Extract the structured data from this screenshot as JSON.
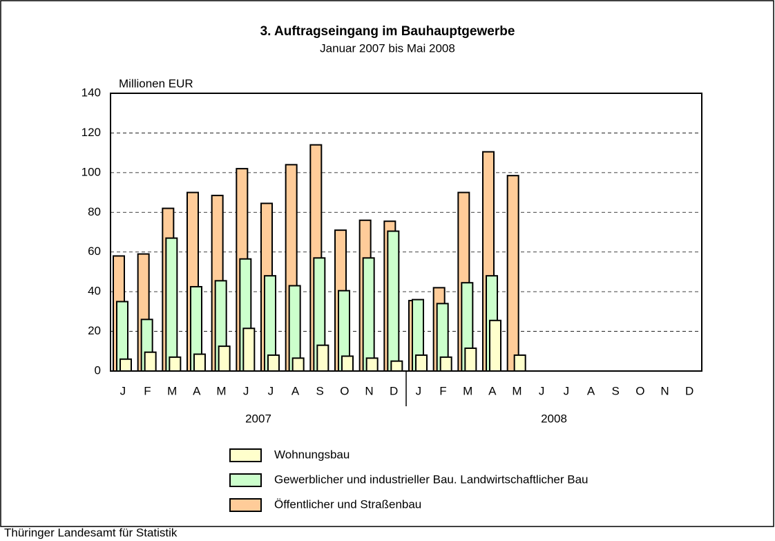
{
  "chart_data": {
    "type": "bar",
    "title": "3. Auftragseingang im Bauhauptgewerbe",
    "subtitle": "Januar 2007 bis Mai 2008",
    "y_label": "Millionen EUR",
    "source": "Thüringer Landesamt für Statistik",
    "categories": [
      "J",
      "F",
      "M",
      "A",
      "M",
      "J",
      "J",
      "A",
      "S",
      "O",
      "N",
      "D",
      "J",
      "F",
      "M",
      "A",
      "M",
      "J",
      "J",
      "A",
      "S",
      "O",
      "N",
      "D"
    ],
    "x_groups": [
      "2007",
      "2008"
    ],
    "series": [
      {
        "name": "Wohnungsbau",
        "color": "#ffffcc",
        "values": [
          6,
          9.5,
          7,
          8.5,
          12.5,
          21.5,
          8,
          6.5,
          13,
          7.5,
          6.5,
          5,
          8,
          7,
          11.5,
          25.5,
          8,
          null,
          null,
          null,
          null,
          null,
          null,
          null
        ]
      },
      {
        "name": "Gewerblicher und industrieller Bau. Landwirtschaftlicher Bau",
        "color": "#ccffcc",
        "values": [
          35,
          26,
          67,
          42.5,
          45.5,
          56.5,
          48,
          43,
          57,
          40.5,
          57,
          70.5,
          36,
          34,
          44.5,
          48,
          null,
          null,
          null,
          null,
          null,
          null,
          null,
          null
        ]
      },
      {
        "name": "Öffentlicher und Straßenbau",
        "color": "#ffcc99",
        "values": [
          58,
          59,
          82,
          90,
          88.5,
          102,
          84.5,
          104,
          114,
          71,
          76,
          75.5,
          35.5,
          42,
          90,
          110.5,
          98.5,
          null,
          null,
          null,
          null,
          null,
          null,
          null
        ]
      }
    ],
    "ylim": [
      0,
      140
    ],
    "yticks": [
      0,
      20,
      40,
      60,
      80,
      100,
      120,
      140
    ],
    "grid": true
  }
}
